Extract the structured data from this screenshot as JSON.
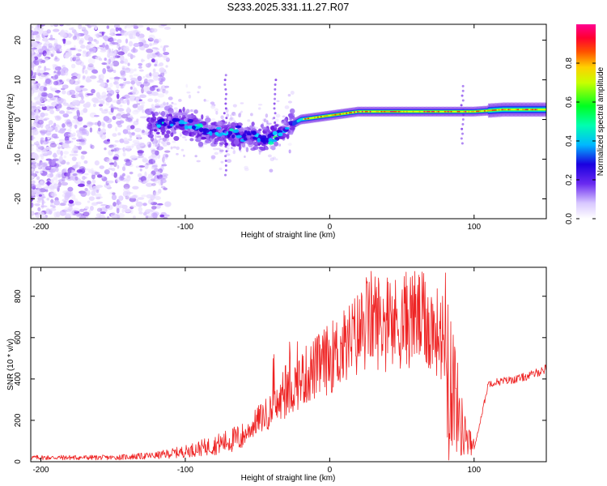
{
  "title": "S233.2025.331.11.27.R07",
  "chart_data": [
    {
      "type": "heatmap",
      "name": "spectrogram",
      "xlabel": "Height of straight line (km)",
      "ylabel": "Frequency (Hz)",
      "xlim": [
        -207,
        150
      ],
      "ylim": [
        -25,
        24
      ],
      "xticks": [
        -200,
        -100,
        0,
        100
      ],
      "yticks": [
        -20,
        -10,
        0,
        10,
        20
      ],
      "colorbar": {
        "label": "Normalized spectral amplitude",
        "ticks": [
          "0.0",
          "0.2",
          "0.4",
          "0.6",
          "0.8"
        ],
        "tick_values": [
          0,
          0.2,
          0.4,
          0.6,
          0.8
        ],
        "range": [
          0,
          1
        ]
      },
      "ridge": {
        "description": "dominant frequency track",
        "x": [
          -120,
          -100,
          -80,
          -60,
          -40,
          -30,
          -20,
          0,
          20,
          50,
          80,
          100,
          120,
          150
        ],
        "y": [
          -1,
          -1,
          -3,
          -4,
          -5,
          -2,
          0,
          1,
          2,
          2,
          2,
          2,
          2.5,
          2.5
        ]
      },
      "colors": [
        "#ffffff",
        "#d8c8ff",
        "#8a4cf0",
        "#2a00e0",
        "#00e0ff",
        "#00ff40",
        "#ffff00",
        "#ff8000",
        "#ff0000",
        "#ff0090"
      ]
    },
    {
      "type": "line",
      "name": "snr",
      "xlabel": "Height of straight line (km)",
      "ylabel": "SNR (10 * v/v)",
      "xlim": [
        -207,
        150
      ],
      "ylim": [
        0,
        940
      ],
      "xticks": [
        -200,
        -100,
        0,
        100
      ],
      "yticks": [
        0,
        200,
        400,
        600,
        800
      ],
      "series": [
        {
          "name": "SNR",
          "color": "#ee2222",
          "envelope_x": [
            -207,
            -150,
            -120,
            -100,
            -80,
            -60,
            -50,
            -40,
            -30,
            -20,
            -10,
            0,
            10,
            20,
            30,
            40,
            50,
            60,
            70,
            80,
            85,
            90,
            95,
            100,
            110,
            120,
            130,
            140,
            150
          ],
          "envelope_y": [
            20,
            20,
            30,
            50,
            80,
            120,
            200,
            250,
            320,
            400,
            450,
            500,
            550,
            620,
            700,
            650,
            680,
            700,
            650,
            600,
            400,
            200,
            100,
            60,
            380,
            390,
            400,
            420,
            450
          ],
          "peak_values": [
            930,
            880,
            930
          ]
        }
      ]
    }
  ]
}
